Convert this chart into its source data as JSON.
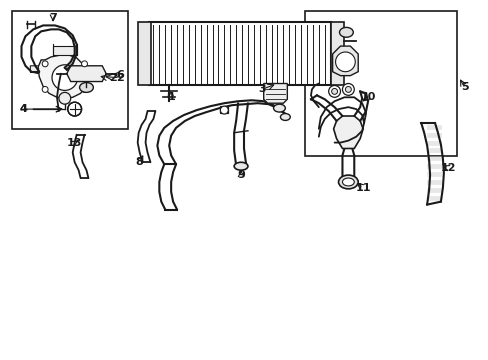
{
  "bg_color": "#ffffff",
  "line_color": "#1a1a1a",
  "box_color": "#000000",
  "label_color": "#000000",
  "fig_width": 4.89,
  "fig_height": 3.6,
  "dpi": 100
}
